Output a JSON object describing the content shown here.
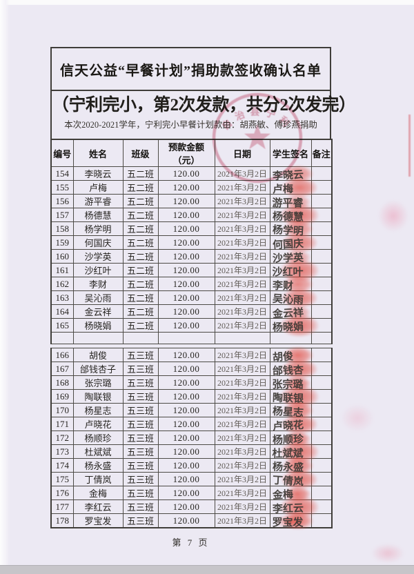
{
  "page": {
    "title": "信天公益“早餐计划”捐助款签收确认名单",
    "subtitle": "（宁利完小，第2次发款，共分2次发完）",
    "note": "本次2020-2021学年，宁利完小早餐计划款由：胡燕敏、傅珍燕捐助",
    "footer": "第 7 页"
  },
  "stamp": {
    "type": "round-official-seal-with-star",
    "arc_text": "自治县宁利",
    "color": "#cf5b74"
  },
  "colors": {
    "paper": "#ece9f3",
    "table_border": "#4c4a45",
    "text": "#262420",
    "seal_red": "#cf5b74",
    "fingerprint_red": "#e03a2c"
  },
  "table": {
    "headers": [
      "编号",
      "姓名",
      "班级",
      "预款金额（元）",
      "日期",
      "学生签名",
      "备注"
    ],
    "sections": [
      {
        "trailing_empty_row": true,
        "rows": [
          {
            "id": "154",
            "name": "李晓云",
            "class": "五二班",
            "amount": "120.00",
            "date": "2021年3月2日",
            "signature": "李晓云",
            "remark": ""
          },
          {
            "id": "155",
            "name": "卢梅",
            "class": "五二班",
            "amount": "120.00",
            "date": "2021年3月2日",
            "signature": "卢梅",
            "remark": ""
          },
          {
            "id": "156",
            "name": "游平睿",
            "class": "五二班",
            "amount": "120.00",
            "date": "2021年3月2日",
            "signature": "游平睿",
            "remark": ""
          },
          {
            "id": "157",
            "name": "杨德慧",
            "class": "五二班",
            "amount": "120.00",
            "date": "2021年3月2日",
            "signature": "杨德慧",
            "remark": ""
          },
          {
            "id": "158",
            "name": "杨学明",
            "class": "五二班",
            "amount": "120.00",
            "date": "2021年3月2日",
            "signature": "杨学明",
            "remark": ""
          },
          {
            "id": "159",
            "name": "何国庆",
            "class": "五二班",
            "amount": "120.00",
            "date": "2021年3月2日",
            "signature": "何国庆",
            "remark": ""
          },
          {
            "id": "160",
            "name": "沙学英",
            "class": "五二班",
            "amount": "120.00",
            "date": "2021年3月2日",
            "signature": "沙学英",
            "remark": ""
          },
          {
            "id": "161",
            "name": "沙红叶",
            "class": "五二班",
            "amount": "120.00",
            "date": "2021年3月2日",
            "signature": "沙红叶",
            "remark": ""
          },
          {
            "id": "162",
            "name": "李财",
            "class": "五二班",
            "amount": "120.00",
            "date": "2021年3月2日",
            "signature": "李财",
            "remark": ""
          },
          {
            "id": "163",
            "name": "吴沁雨",
            "class": "五二班",
            "amount": "120.00",
            "date": "2021年3月2日",
            "signature": "吴沁雨",
            "remark": ""
          },
          {
            "id": "164",
            "name": "金云祥",
            "class": "五二班",
            "amount": "120.00",
            "date": "2021年3月2日",
            "signature": "金云祥",
            "remark": ""
          },
          {
            "id": "165",
            "name": "杨晓娟",
            "class": "五二班",
            "amount": "120.00",
            "date": "2021年3月2日",
            "signature": "杨晓娟",
            "remark": ""
          }
        ]
      },
      {
        "trailing_empty_row": false,
        "rows": [
          {
            "id": "166",
            "name": "胡俊",
            "class": "五三班",
            "amount": "120.00",
            "date": "2021年3月2日",
            "signature": "胡俊",
            "remark": ""
          },
          {
            "id": "167",
            "name": "邰钱杏子",
            "class": "五三班",
            "amount": "120.00",
            "date": "2021年3月2日",
            "signature": "邰钱杏",
            "remark": ""
          },
          {
            "id": "168",
            "name": "张宗璐",
            "class": "五三班",
            "amount": "120.00",
            "date": "2021年3月2日",
            "signature": "张宗璐",
            "remark": ""
          },
          {
            "id": "169",
            "name": "陶联银",
            "class": "五三班",
            "amount": "120.00",
            "date": "2021年3月2日",
            "signature": "陶联银",
            "remark": ""
          },
          {
            "id": "170",
            "name": "杨星志",
            "class": "五三班",
            "amount": "120.00",
            "date": "2021年3月2日",
            "signature": "杨星志",
            "remark": ""
          },
          {
            "id": "171",
            "name": "卢晓花",
            "class": "五三班",
            "amount": "120.00",
            "date": "2021年3月2日",
            "signature": "卢晓花",
            "remark": ""
          },
          {
            "id": "172",
            "name": "杨顺珍",
            "class": "五三班",
            "amount": "120.00",
            "date": "2021年3月2日",
            "signature": "杨顺珍",
            "remark": ""
          },
          {
            "id": "173",
            "name": "杜斌斌",
            "class": "五三班",
            "amount": "120.00",
            "date": "2021年3月2日",
            "signature": "杜斌斌",
            "remark": ""
          },
          {
            "id": "174",
            "name": "杨永盛",
            "class": "五三班",
            "amount": "120.00",
            "date": "2021年3月2日",
            "signature": "杨永盛",
            "remark": ""
          },
          {
            "id": "175",
            "name": "丁倩岚",
            "class": "五三班",
            "amount": "120.00",
            "date": "2021年3月2日",
            "signature": "丁倩岚",
            "remark": ""
          },
          {
            "id": "176",
            "name": "金梅",
            "class": "五三班",
            "amount": "120.00",
            "date": "2021年3月2日",
            "signature": "金梅",
            "remark": ""
          },
          {
            "id": "177",
            "name": "李红云",
            "class": "五三班",
            "amount": "120.00",
            "date": "2021年3月2日",
            "signature": "李红云",
            "remark": ""
          },
          {
            "id": "178",
            "name": "罗宝发",
            "class": "五三班",
            "amount": "120.00",
            "date": "2021年3月2日",
            "signature": "罗宝发",
            "remark": ""
          }
        ]
      }
    ]
  }
}
